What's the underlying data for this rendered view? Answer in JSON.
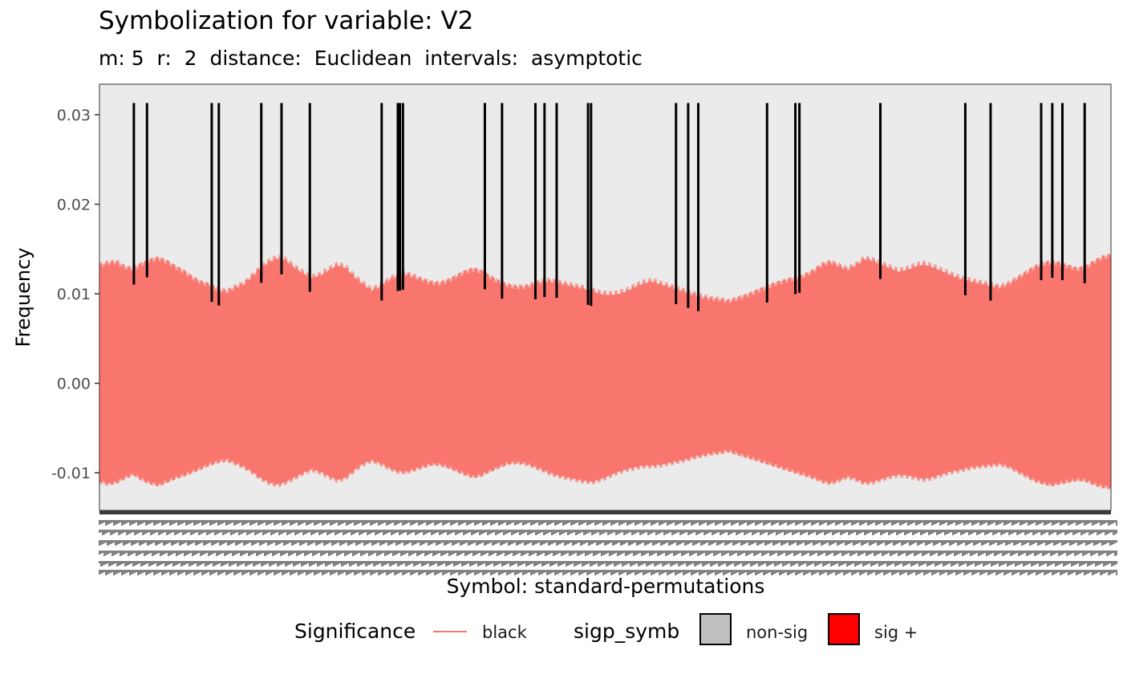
{
  "chart_data": {
    "type": "line",
    "title": "Symbolization for variable: V2",
    "subtitle": "m: 5  r:  2  distance:  Euclidean  intervals:  asymptotic",
    "xlabel": "Symbol: standard-permutations",
    "ylabel": "Frequency",
    "ylim": [
      -0.0142,
      0.0334
    ],
    "y_ticks": [
      -0.01,
      0.0,
      0.01,
      0.02,
      0.03
    ],
    "y_tick_labels": [
      "-0.01",
      "0.00",
      "0.01",
      "0.02",
      "0.03"
    ],
    "n_symbols": 120,
    "x_tick_labels": "dense overlapping permutation labels (illegible)",
    "panel_background": "#EBEBEB",
    "grid": false,
    "legend_position": "bottom",
    "series": [
      {
        "name": "black",
        "color": "#F8766D",
        "description_of_band": "interval band from lower to upper bound per symbol",
        "upper": [
          0.0132,
          0.0135,
          0.0136,
          0.013,
          0.0128,
          0.0134,
          0.0138,
          0.014,
          0.0136,
          0.013,
          0.0125,
          0.0118,
          0.0113,
          0.011,
          0.0105,
          0.0103,
          0.0108,
          0.0112,
          0.0121,
          0.013,
          0.0137,
          0.0141,
          0.0138,
          0.013,
          0.0124,
          0.0119,
          0.0122,
          0.0128,
          0.0133,
          0.013,
          0.012,
          0.0112,
          0.0105,
          0.0109,
          0.0116,
          0.0121,
          0.0123,
          0.012,
          0.0116,
          0.0113,
          0.0112,
          0.0115,
          0.012,
          0.0125,
          0.0128,
          0.0125,
          0.0119,
          0.0114,
          0.011,
          0.0108,
          0.0108,
          0.0111,
          0.0114,
          0.0115,
          0.0113,
          0.0111,
          0.0109,
          0.0107,
          0.0104,
          0.0101,
          0.01,
          0.0101,
          0.0104,
          0.0109,
          0.0113,
          0.0115,
          0.0112,
          0.0109,
          0.0106,
          0.0103,
          0.01,
          0.0097,
          0.0095,
          0.0094,
          0.0092,
          0.0095,
          0.0098,
          0.0102,
          0.0106,
          0.011,
          0.0113,
          0.0116,
          0.0118,
          0.0121,
          0.0126,
          0.0133,
          0.0136,
          0.0132,
          0.0128,
          0.0133,
          0.014,
          0.0138,
          0.0134,
          0.013,
          0.0126,
          0.0128,
          0.0132,
          0.0134,
          0.0131,
          0.0127,
          0.0123,
          0.0119,
          0.0116,
          0.0114,
          0.0112,
          0.011,
          0.0108,
          0.0112,
          0.0118,
          0.0124,
          0.013,
          0.0134,
          0.0136,
          0.0134,
          0.0131,
          0.0128,
          0.013,
          0.0136,
          0.0141,
          0.0143
        ],
        "lower": [
          -0.011,
          -0.0113,
          -0.0111,
          -0.0106,
          -0.0102,
          -0.0108,
          -0.0112,
          -0.0114,
          -0.011,
          -0.0106,
          -0.0103,
          -0.0099,
          -0.0095,
          -0.0091,
          -0.0088,
          -0.0086,
          -0.009,
          -0.0094,
          -0.01,
          -0.0107,
          -0.0112,
          -0.0114,
          -0.0111,
          -0.0106,
          -0.0101,
          -0.0097,
          -0.01,
          -0.0105,
          -0.0109,
          -0.0106,
          -0.0098,
          -0.0091,
          -0.0087,
          -0.009,
          -0.0095,
          -0.0099,
          -0.01,
          -0.0097,
          -0.0094,
          -0.0091,
          -0.0091,
          -0.0094,
          -0.0098,
          -0.0102,
          -0.0105,
          -0.0103,
          -0.0098,
          -0.0094,
          -0.009,
          -0.0089,
          -0.009,
          -0.0093,
          -0.0097,
          -0.0101,
          -0.0104,
          -0.0106,
          -0.0108,
          -0.011,
          -0.0111,
          -0.0108,
          -0.0104,
          -0.01,
          -0.0097,
          -0.0095,
          -0.0093,
          -0.0093,
          -0.0092,
          -0.009,
          -0.0088,
          -0.0086,
          -0.0083,
          -0.0081,
          -0.0079,
          -0.0078,
          -0.0076,
          -0.0079,
          -0.0082,
          -0.0085,
          -0.0088,
          -0.0091,
          -0.0094,
          -0.0097,
          -0.01,
          -0.0103,
          -0.0106,
          -0.011,
          -0.0112,
          -0.0109,
          -0.0105,
          -0.0108,
          -0.0112,
          -0.0111,
          -0.0108,
          -0.0105,
          -0.0103,
          -0.0104,
          -0.0106,
          -0.0108,
          -0.0106,
          -0.0103,
          -0.01,
          -0.0098,
          -0.0096,
          -0.0094,
          -0.0093,
          -0.0092,
          -0.0091,
          -0.0094,
          -0.0099,
          -0.0104,
          -0.0109,
          -0.0112,
          -0.0114,
          -0.0112,
          -0.011,
          -0.0108,
          -0.0109,
          -0.0113,
          -0.0116,
          -0.0117
        ]
      }
    ],
    "spikes": {
      "description": "black vertical lines reaching top",
      "value": 0.0313,
      "x_fraction_positions": [
        0.034,
        0.047,
        0.111,
        0.118,
        0.16,
        0.18,
        0.208,
        0.279,
        0.295,
        0.297,
        0.3,
        0.381,
        0.398,
        0.431,
        0.44,
        0.452,
        0.483,
        0.486,
        0.57,
        0.582,
        0.592,
        0.66,
        0.688,
        0.692,
        0.772,
        0.856,
        0.881,
        0.931,
        0.942,
        0.952,
        0.974
      ]
    }
  },
  "legend": {
    "significance_title": "Significance",
    "significance_item": "black",
    "sigp_title": "sigp_symb",
    "items": [
      {
        "label": "non-sig",
        "color": "#C0C0C0"
      },
      {
        "label": "sig +",
        "color": "#FF0000"
      }
    ]
  }
}
